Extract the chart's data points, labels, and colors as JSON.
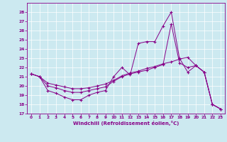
{
  "xlabel": "Windchill (Refroidissement éolien,°C)",
  "bg_color": "#cce9f0",
  "line_color": "#880088",
  "grid_color": "#ffffff",
  "ylim": [
    17,
    29
  ],
  "xlim": [
    -0.5,
    23.5
  ],
  "yticks": [
    17,
    18,
    19,
    20,
    21,
    22,
    23,
    24,
    25,
    26,
    27,
    28
  ],
  "xticks": [
    0,
    1,
    2,
    3,
    4,
    5,
    6,
    7,
    8,
    9,
    10,
    11,
    12,
    13,
    14,
    15,
    16,
    17,
    18,
    19,
    20,
    21,
    22,
    23
  ],
  "line1_x": [
    0,
    1,
    2,
    3,
    4,
    5,
    6,
    7,
    8,
    9,
    10,
    11,
    12,
    13,
    14,
    15,
    16,
    17,
    18,
    19,
    20,
    21,
    22,
    23
  ],
  "line1_y": [
    21.3,
    21.0,
    19.5,
    19.2,
    18.8,
    18.5,
    18.5,
    19.0,
    19.3,
    19.5,
    21.0,
    22.0,
    21.2,
    24.6,
    24.8,
    24.8,
    26.5,
    28.0,
    23.0,
    21.5,
    22.2,
    21.5,
    18.0,
    17.5
  ],
  "line2_x": [
    0,
    1,
    2,
    3,
    4,
    5,
    6,
    7,
    8,
    9,
    10,
    11,
    12,
    13,
    14,
    15,
    16,
    17,
    18,
    19,
    20,
    21,
    22,
    23
  ],
  "line2_y": [
    21.3,
    21.0,
    20.0,
    19.8,
    19.5,
    19.3,
    19.3,
    19.5,
    19.7,
    19.9,
    20.5,
    21.0,
    21.3,
    21.5,
    21.7,
    22.0,
    22.3,
    26.7,
    22.5,
    22.0,
    22.2,
    21.5,
    18.0,
    17.5
  ],
  "line3_x": [
    0,
    1,
    2,
    3,
    4,
    5,
    6,
    7,
    8,
    9,
    10,
    11,
    12,
    13,
    14,
    15,
    16,
    17,
    18,
    19,
    20,
    21,
    22,
    23
  ],
  "line3_y": [
    21.3,
    21.0,
    20.3,
    20.1,
    19.9,
    19.7,
    19.7,
    19.8,
    20.0,
    20.2,
    20.6,
    21.1,
    21.4,
    21.6,
    21.9,
    22.1,
    22.4,
    22.6,
    22.9,
    23.1,
    22.2,
    21.5,
    18.0,
    17.5
  ],
  "label_fontsize": 4.2,
  "xlabel_fontsize": 5.0
}
